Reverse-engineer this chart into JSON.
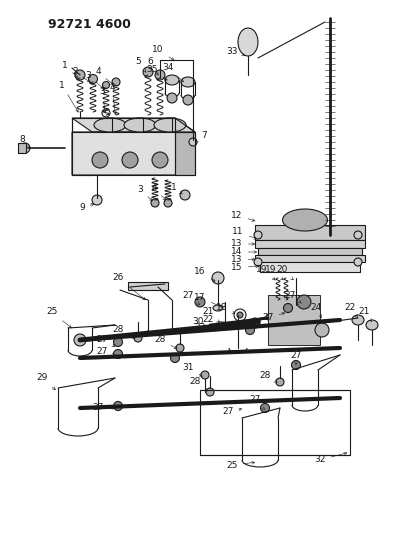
{
  "title": "92721 4600",
  "background_color": "#ffffff",
  "fig_width": 4.01,
  "fig_height": 5.33,
  "dpi": 100,
  "line_color": "#1a1a1a",
  "title_fontsize": 9,
  "label_fontsize": 6.5
}
